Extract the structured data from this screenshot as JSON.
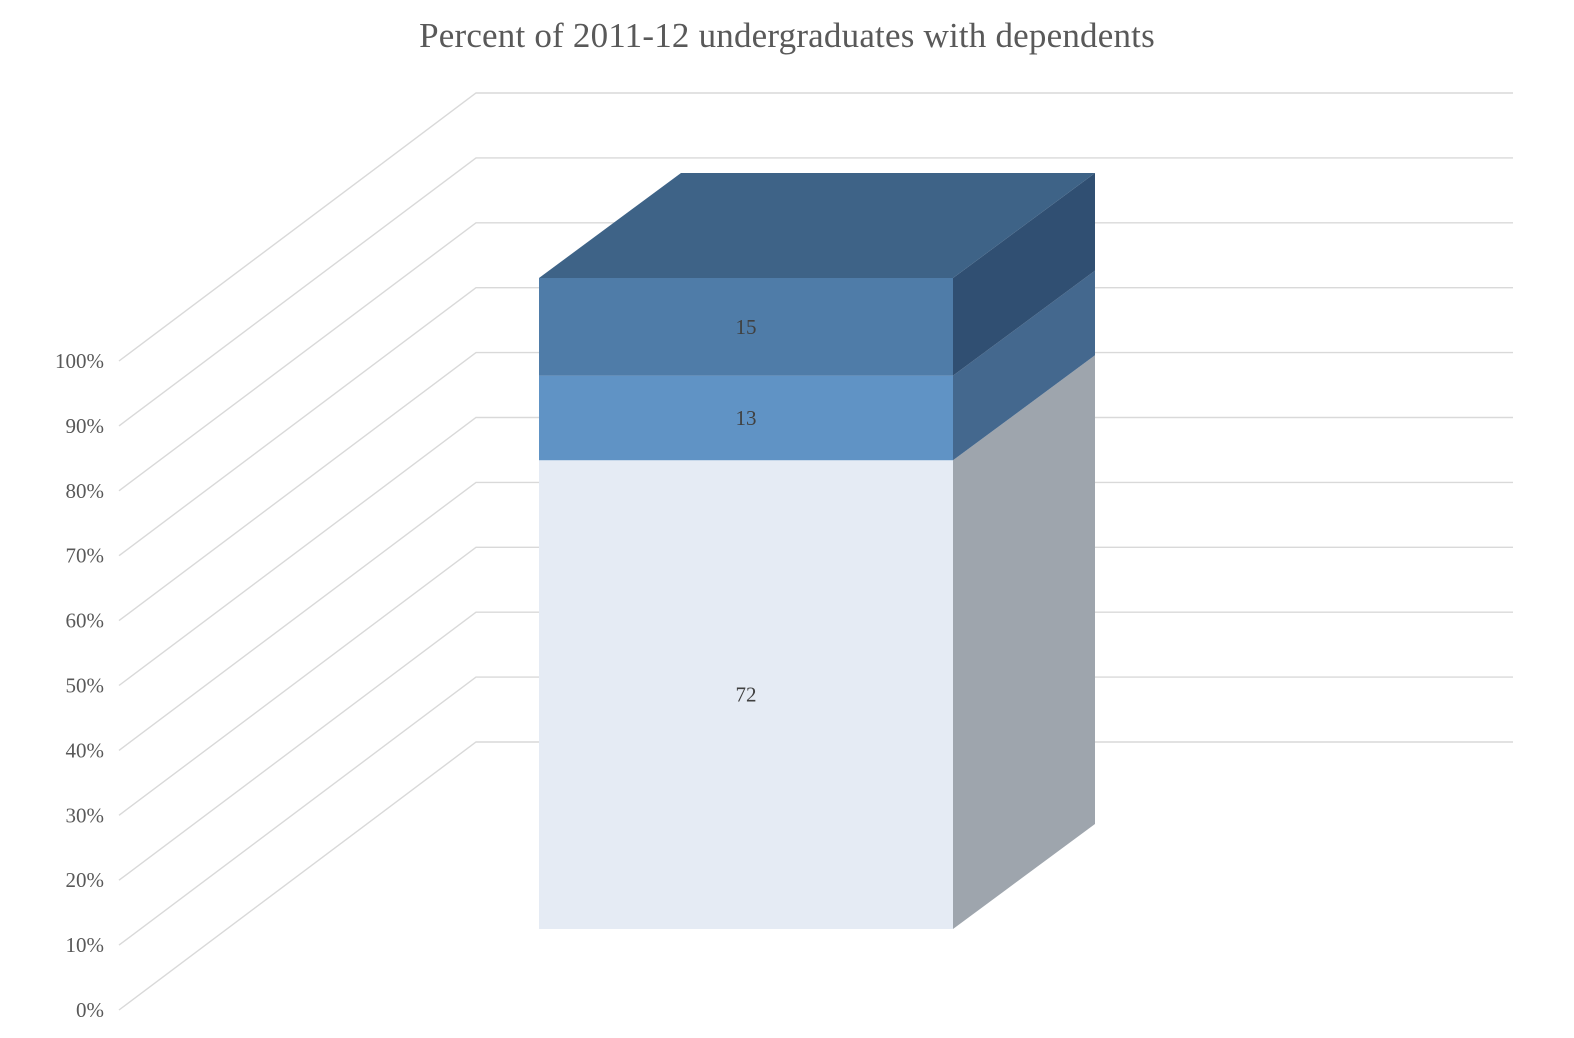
{
  "page": {
    "background_color": "#FFFFFF"
  },
  "chart_data": {
    "type": "bar",
    "subtype": "3d-100-percent-stacked-column",
    "title": "Percent of 2011-12 undergraduates with dependents",
    "title_color": "#595959",
    "axis_label_color": "#595959",
    "data_label_color": "#404040",
    "gridline_color": "#D9D9D9",
    "legend": "none",
    "xlabel": "",
    "ylabel": "",
    "ylim": [
      0,
      100
    ],
    "y_ticks": [
      "0%",
      "10%",
      "20%",
      "30%",
      "40%",
      "50%",
      "60%",
      "70%",
      "80%",
      "90%",
      "100%"
    ],
    "categories": [
      ""
    ],
    "series": [
      {
        "position": "bottom",
        "value": 72,
        "data_label": "72",
        "front_color": "#E5EBF4",
        "side_color": "#9EA5AD"
      },
      {
        "position": "middle",
        "value": 13,
        "data_label": "13",
        "front_color": "#6093C5",
        "side_color": "#44688E"
      },
      {
        "position": "top",
        "value": 15,
        "data_label": "15",
        "front_color": "#4F7CA8",
        "side_color": "#304F72",
        "top_color": "#3E6387"
      }
    ]
  }
}
